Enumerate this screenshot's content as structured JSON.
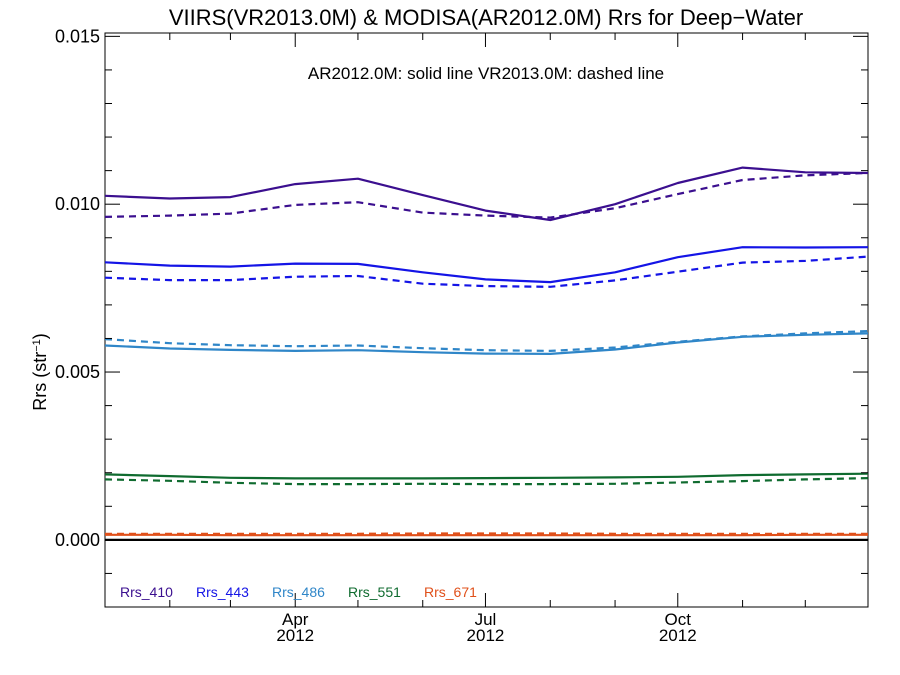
{
  "chart_data": {
    "type": "line",
    "title": "VIIRS(VR2013.0M) & MODISA(AR2012.0M)  Rrs for Deep−Water",
    "annotation": "AR2012.0M: solid line   VR2013.0M: dashed line",
    "ylabel": "Rrs (str",
    "ylabel_sup": "−1",
    "ylabel_close": ")",
    "ylim": [
      -0.002,
      0.0151
    ],
    "yticks": [
      0.0,
      0.005,
      0.01,
      0.015
    ],
    "ytick_labels": [
      "0.000",
      "0.005",
      "0.010",
      "0.015"
    ],
    "xlim": [
      "2012-01-01",
      "2012-12-31"
    ],
    "x": [
      "2012-01-01",
      "2012-02-01",
      "2012-03-01",
      "2012-04-01",
      "2012-05-01",
      "2012-06-01",
      "2012-07-01",
      "2012-08-01",
      "2012-09-01",
      "2012-10-01",
      "2012-11-01",
      "2012-12-01",
      "2012-12-31"
    ],
    "xticks": [
      {
        "date": "2012-04-01",
        "month": "Apr",
        "year": "2012"
      },
      {
        "date": "2012-07-01",
        "month": "Jul",
        "year": "2012"
      },
      {
        "date": "2012-10-01",
        "month": "Oct",
        "year": "2012"
      }
    ],
    "series": [
      {
        "name": "Rrs_410",
        "color": "#3b0f8f",
        "style": "solid",
        "values": [
          0.01025,
          0.01017,
          0.01021,
          0.0106,
          0.01076,
          0.01027,
          0.00981,
          0.00953,
          0.01,
          0.01063,
          0.01109,
          0.01095,
          0.01093
        ]
      },
      {
        "name": "Rrs_410",
        "color": "#3b0f8f",
        "style": "dashed",
        "values": [
          0.00962,
          0.00966,
          0.00972,
          0.00998,
          0.01006,
          0.00975,
          0.00966,
          0.0096,
          0.00988,
          0.0103,
          0.01072,
          0.01086,
          0.01093
        ]
      },
      {
        "name": "Rrs_443",
        "color": "#1414e6",
        "style": "solid",
        "values": [
          0.00827,
          0.00817,
          0.00814,
          0.00823,
          0.00822,
          0.00797,
          0.00776,
          0.00768,
          0.00797,
          0.00842,
          0.00872,
          0.00871,
          0.00872
        ]
      },
      {
        "name": "Rrs_443",
        "color": "#1414e6",
        "style": "dashed",
        "values": [
          0.00781,
          0.00774,
          0.00774,
          0.00784,
          0.00786,
          0.00763,
          0.00756,
          0.00754,
          0.00773,
          0.00799,
          0.00826,
          0.00831,
          0.00844
        ]
      },
      {
        "name": "Rrs_486",
        "color": "#2f86c8",
        "style": "solid",
        "values": [
          0.00579,
          0.0057,
          0.00566,
          0.00563,
          0.00565,
          0.00559,
          0.00555,
          0.00554,
          0.00567,
          0.00588,
          0.00605,
          0.00611,
          0.00615
        ]
      },
      {
        "name": "Rrs_486",
        "color": "#2f86c8",
        "style": "dashed",
        "values": [
          0.00598,
          0.00586,
          0.0058,
          0.00577,
          0.00579,
          0.00571,
          0.00565,
          0.00563,
          0.00573,
          0.0059,
          0.00606,
          0.00615,
          0.00622
        ]
      },
      {
        "name": "Rrs_551",
        "color": "#0f6b2f",
        "style": "solid",
        "values": [
          0.00195,
          0.0019,
          0.00185,
          0.00183,
          0.00183,
          0.00183,
          0.00184,
          0.00185,
          0.00186,
          0.00188,
          0.00193,
          0.00195,
          0.00197
        ]
      },
      {
        "name": "Rrs_551",
        "color": "#0f6b2f",
        "style": "dashed",
        "values": [
          0.0018,
          0.00176,
          0.0017,
          0.00166,
          0.00166,
          0.00167,
          0.00166,
          0.00166,
          0.00167,
          0.00171,
          0.00175,
          0.0018,
          0.00184
        ]
      },
      {
        "name": "Rrs_671",
        "color": "#e0501a",
        "style": "solid",
        "values": [
          0.00015,
          0.00015,
          0.00014,
          0.00014,
          0.00014,
          0.00014,
          0.00014,
          0.00014,
          0.00014,
          0.00014,
          0.00014,
          0.00015,
          0.00015
        ]
      },
      {
        "name": "Rrs_671",
        "color": "#e0501a",
        "style": "dashed",
        "values": [
          0.00018,
          0.00018,
          0.00018,
          0.00018,
          0.00018,
          0.00019,
          0.00019,
          0.00019,
          0.00018,
          0.00018,
          0.00018,
          0.00018,
          0.00018
        ]
      }
    ],
    "zero_line": {
      "value": 0.0,
      "color": "#000000"
    },
    "legend": [
      {
        "label": "Rrs_410",
        "color": "#3b0f8f"
      },
      {
        "label": "Rrs_443",
        "color": "#1414e6"
      },
      {
        "label": "Rrs_486",
        "color": "#2f86c8"
      },
      {
        "label": "Rrs_551",
        "color": "#0f6b2f"
      },
      {
        "label": "Rrs_671",
        "color": "#e0501a"
      }
    ],
    "legend_position": "bottom-left",
    "grid": false
  }
}
